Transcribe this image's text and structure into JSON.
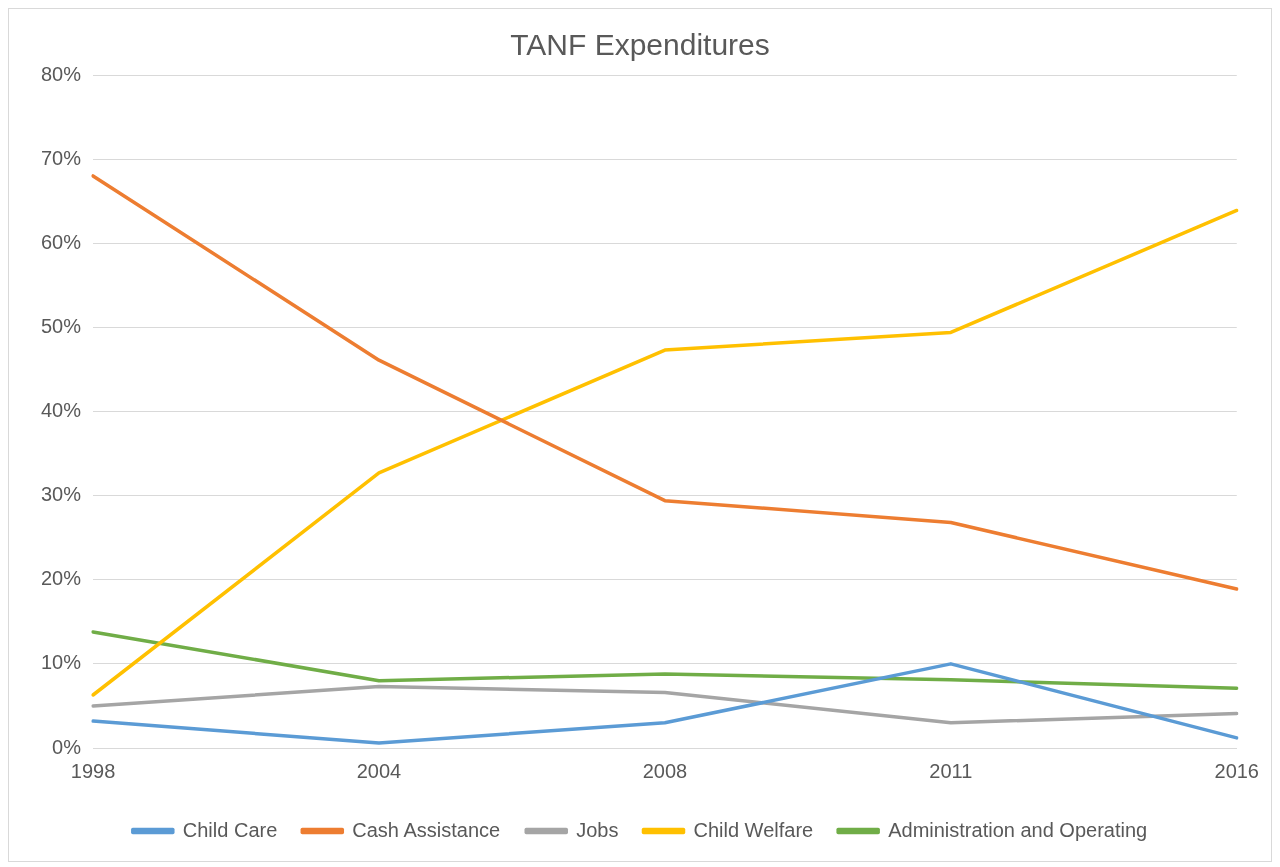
{
  "chart_data": {
    "type": "line",
    "title": "TANF Expenditures",
    "categories": [
      "1998",
      "2004",
      "2008",
      "2011",
      "2016"
    ],
    "series": [
      {
        "name": "Child Care",
        "color": "#5b9bd5",
        "values": [
          3.2,
          0.6,
          3.0,
          10.0,
          1.2
        ]
      },
      {
        "name": "Cash Assistance",
        "color": "#ed7d31",
        "values": [
          68,
          46.1,
          29.4,
          26.8,
          18.9
        ]
      },
      {
        "name": "Jobs",
        "color": "#a5a5a5",
        "values": [
          5.0,
          7.3,
          6.6,
          3.0,
          4.1
        ]
      },
      {
        "name": "Child Welfare",
        "color": "#ffc000",
        "values": [
          6.3,
          32.7,
          47.3,
          49.4,
          63.9
        ]
      },
      {
        "name": "Administration and Operating",
        "color": "#70ad47",
        "values": [
          13.8,
          8.0,
          8.8,
          8.1,
          7.1
        ]
      }
    ],
    "ylim": [
      0,
      80
    ],
    "yticks": [
      {
        "value": 0,
        "label": "0%"
      },
      {
        "value": 10,
        "label": "10%"
      },
      {
        "value": 20,
        "label": "20%"
      },
      {
        "value": 30,
        "label": "30%"
      },
      {
        "value": 40,
        "label": "40%"
      },
      {
        "value": 50,
        "label": "50%"
      },
      {
        "value": 60,
        "label": "60%"
      },
      {
        "value": 70,
        "label": "70%"
      },
      {
        "value": 80,
        "label": "80%"
      }
    ],
    "grid": "y",
    "legend": "bottom",
    "marker": "none",
    "line_style": "solid"
  }
}
